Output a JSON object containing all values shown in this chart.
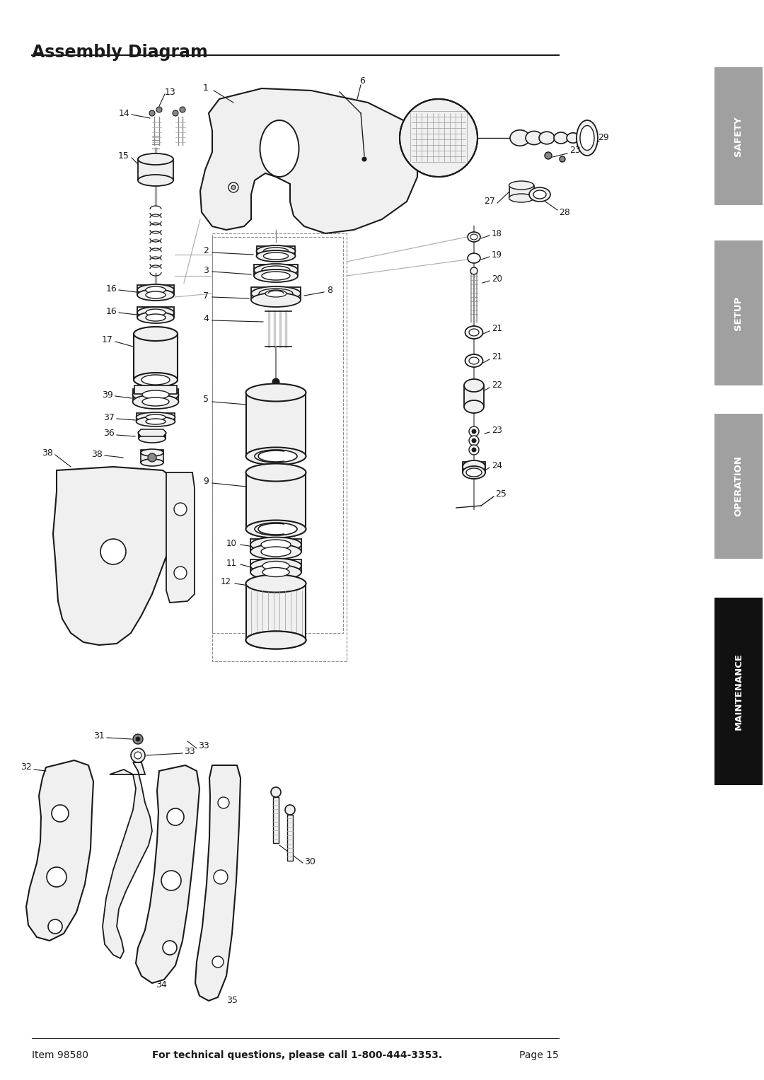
{
  "title": "Assembly Diagram",
  "item_number": "Item 98580",
  "footer_center": "For technical questions, please call 1-800-444-3353.",
  "page": "Page 15",
  "bg_color": "#ffffff",
  "title_color": "#1a1a1a",
  "text_color": "#1a1a1a",
  "sidebar_labels": [
    "SAFETY",
    "SETUP",
    "OPERATION",
    "MAINTENANCE"
  ],
  "sidebar_colors": [
    "#a0a0a0",
    "#a0a0a0",
    "#a0a0a0",
    "#111111"
  ],
  "sidebar_text_color": [
    "#ffffff",
    "#ffffff",
    "#ffffff",
    "#ffffff"
  ],
  "line_color": "#1a1a1a",
  "part_fill": "#f0f0f0",
  "dark_fill": "#c8c8c8"
}
